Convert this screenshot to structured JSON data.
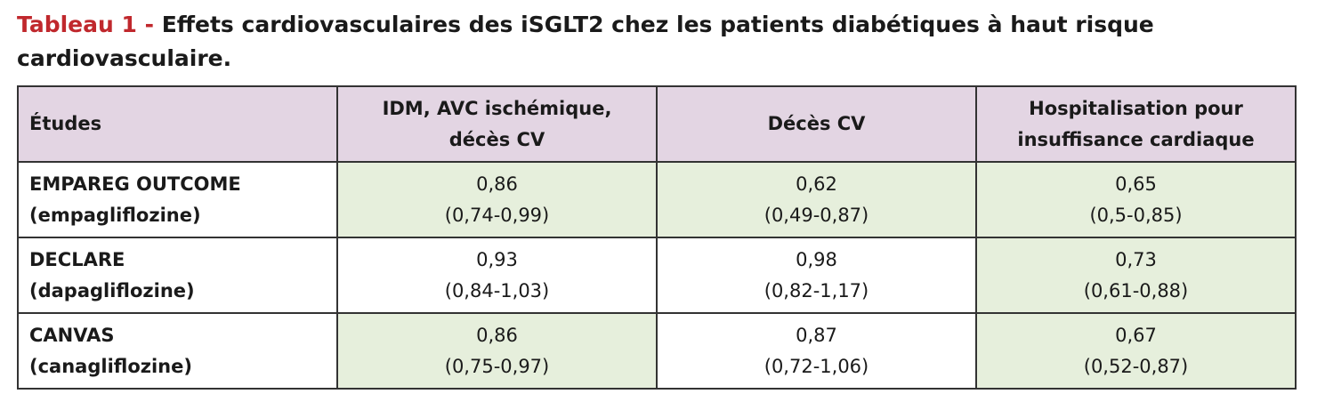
{
  "title": {
    "label": "Tableau 1",
    "separator": " - ",
    "text": "Effets cardiovasculaires des iSGLT2 chez les patients diabétiques à haut risque cardiovasculaire."
  },
  "table": {
    "headers": [
      {
        "lines": [
          "Études"
        ]
      },
      {
        "lines": [
          "IDM, AVC ischémique,",
          "décès CV"
        ]
      },
      {
        "lines": [
          "Décès CV"
        ]
      },
      {
        "lines": [
          "Hospitalisation pour",
          "insuffisance cardiaque"
        ]
      }
    ],
    "rows": [
      {
        "study": [
          "EMPAREG OUTCOME",
          "(empagliflozine)"
        ],
        "cells": [
          {
            "value": "0,86",
            "ci": "(0,74-0,99)",
            "highlight": true
          },
          {
            "value": "0,62",
            "ci": "(0,49-0,87)",
            "highlight": true
          },
          {
            "value": "0,65",
            "ci": "(0,5-0,85)",
            "highlight": true
          }
        ]
      },
      {
        "study": [
          "DECLARE",
          "(dapagliflozine)"
        ],
        "cells": [
          {
            "value": "0,93",
            "ci": "(0,84-1,03)",
            "highlight": false
          },
          {
            "value": "0,98",
            "ci": "(0,82-1,17)",
            "highlight": false
          },
          {
            "value": "0,73",
            "ci": "(0,61-0,88)",
            "highlight": true
          }
        ]
      },
      {
        "study": [
          "CANVAS",
          "(canagliflozine)"
        ],
        "cells": [
          {
            "value": "0,86",
            "ci": "(0,75-0,97)",
            "highlight": true
          },
          {
            "value": "0,87",
            "ci": "(0,72-1,06)",
            "highlight": false
          },
          {
            "value": "0,67",
            "ci": "(0,52-0,87)",
            "highlight": true
          }
        ]
      }
    ]
  },
  "colors": {
    "title_accent": "#c0282d",
    "header_bg": "#e3d5e3",
    "highlight_bg": "#e6efdc",
    "border": "#333333"
  }
}
